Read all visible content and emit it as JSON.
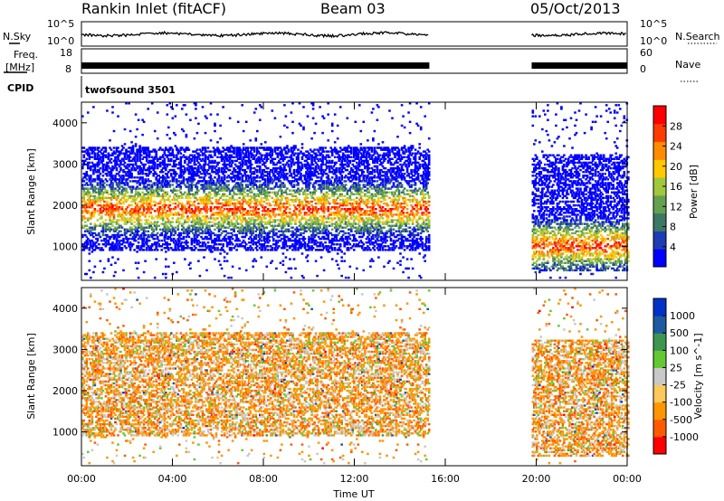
{
  "header": {
    "station": "Rankin Inlet (fitACF)",
    "beam": "Beam 03",
    "date": "05/Oct/2013"
  },
  "status": {
    "nsky_label": "N.Sky",
    "nsearch_label": "N.Search",
    "freq_label_1": "Freq.",
    "freq_label_2": "[MHz]",
    "nave_label": "Nave",
    "cpid_label": "CPID",
    "cpid_value": "twofsound 3501",
    "noise_ticks_left": [
      "10^5",
      "10^0"
    ],
    "noise_ticks_right": [
      "10^5",
      "10^0"
    ],
    "freq_ticks": [
      "18",
      "8"
    ],
    "nave_ticks": [
      "60",
      "0"
    ]
  },
  "chart_data": [
    {
      "type": "heatmap",
      "title": "",
      "xlabel": "Time UT",
      "ylabel": "Slant Range [km]",
      "x_ticks": [
        "00:00",
        "04:00",
        "08:00",
        "12:00",
        "16:00",
        "20:00",
        "00:00"
      ],
      "xlim_hours": [
        0,
        24
      ],
      "ylim_km": [
        180,
        4500
      ],
      "y_ticks": [
        1000,
        2000,
        3000,
        4000
      ],
      "colorbar": {
        "label": "Power [dB]",
        "ticks": [
          "28",
          "24",
          "20",
          "16",
          "12",
          "8",
          "4"
        ],
        "range_db": [
          0,
          32
        ],
        "colors": [
          "#0000ff",
          "#1e3cb4",
          "#3c7864",
          "#64a050",
          "#a0c83c",
          "#ffc800",
          "#ff8c00",
          "#ff3c00",
          "#ff0000"
        ]
      },
      "observations": [
        {
          "time_hours": [
            0,
            15.3
          ],
          "range_km": [
            900,
            3400
          ],
          "peak_range_km": 1900,
          "peak_power_db": 28
        },
        {
          "time_hours": [
            19.8,
            24
          ],
          "range_km": [
            400,
            3200
          ],
          "peak_range_km": 1000,
          "peak_power_db": 28
        }
      ]
    },
    {
      "type": "heatmap",
      "title": "",
      "xlabel": "Time UT",
      "ylabel": "Slant Range [km]",
      "x_ticks": [
        "00:00",
        "04:00",
        "08:00",
        "12:00",
        "16:00",
        "20:00",
        "00:00"
      ],
      "xlim_hours": [
        0,
        24
      ],
      "ylim_km": [
        180,
        4500
      ],
      "y_ticks": [
        1000,
        2000,
        3000,
        4000
      ],
      "colorbar": {
        "label": "Velocity [m s^-1]",
        "ticks": [
          "1000",
          "500",
          "100",
          "25",
          "-25",
          "-100",
          "-500",
          "-1000"
        ],
        "range_ms": [
          -1000,
          1000
        ],
        "colors": [
          "#ff0000",
          "#ff5a00",
          "#ff9600",
          "#ffc85a",
          "#c8c8c8",
          "#64c832",
          "#3c9650",
          "#1e5aa0",
          "#0032c8"
        ]
      },
      "observations": [
        {
          "time_hours": [
            0,
            15.3
          ],
          "range_km": [
            900,
            3400
          ],
          "dominant_velocity_ms": -100
        },
        {
          "time_hours": [
            19.8,
            24
          ],
          "range_km": [
            400,
            3200
          ],
          "dominant_velocity_ms": -25
        }
      ]
    }
  ]
}
